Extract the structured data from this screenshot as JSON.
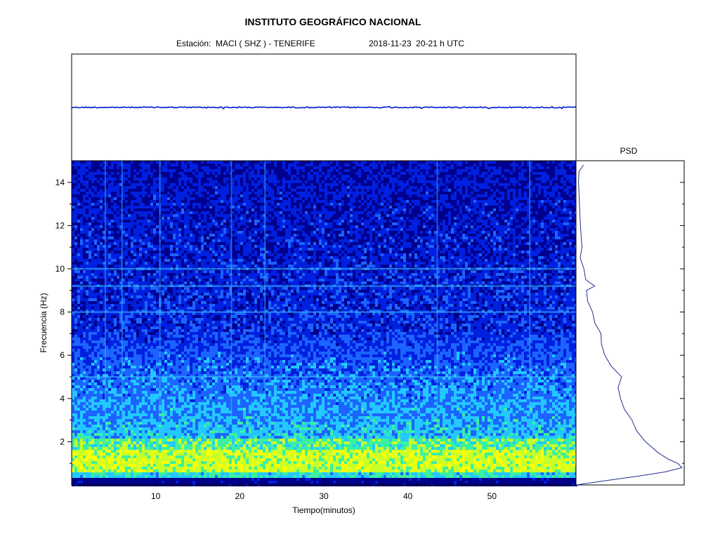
{
  "header": {
    "title": "INSTITUTO GEOGRÁFICO NACIONAL",
    "station": "Estación:  MACI ( SHZ ) - TENERIFE",
    "datetime": "2018-11-23  20-21 h UTC"
  },
  "chart_data": [
    {
      "type": "line",
      "panel": "seismogram",
      "title": "",
      "xlabel": "",
      "ylabel": "",
      "xlim": [
        0,
        60
      ],
      "color": "#0019c8",
      "description_level": "constant low-amplitude trace"
    },
    {
      "type": "heatmap",
      "panel": "spectrogram",
      "xlabel": "Tiempo(minutos)",
      "ylabel": "Frecuencia  (Hz)",
      "xlim": [
        0,
        60
      ],
      "ylim": [
        0,
        15
      ],
      "x_ticks": [
        10,
        20,
        30,
        40,
        50
      ],
      "y_ticks": [
        2,
        4,
        6,
        8,
        10,
        12,
        14
      ],
      "energy_bands_hz": [
        {
          "from": 0.0,
          "to": 0.3,
          "level": "very low"
        },
        {
          "from": 0.3,
          "to": 1.8,
          "level": "high"
        },
        {
          "from": 1.8,
          "to": 3.5,
          "level": "medium-high"
        },
        {
          "from": 3.5,
          "to": 7.0,
          "level": "medium"
        },
        {
          "from": 7.0,
          "to": 15.0,
          "level": "low"
        }
      ],
      "horizontal_lines_hz": [
        8.0,
        9.2,
        10.0,
        5.0
      ],
      "vertical_lines_min": [
        4.0,
        6.0,
        10.5,
        19.0,
        23.0,
        43.5,
        54.5
      ],
      "colormap": [
        "#00008c",
        "#0020e0",
        "#1c64ff",
        "#22c8ff",
        "#3cf0a0",
        "#c8ff28",
        "#ffff00"
      ]
    },
    {
      "type": "line",
      "panel": "psd",
      "title": "PSD",
      "y_hz": [
        0.0,
        0.2,
        0.4,
        0.6,
        0.8,
        1.0,
        1.2,
        1.5,
        2.0,
        2.5,
        3.0,
        3.5,
        4.0,
        4.5,
        5.0,
        5.5,
        6.0,
        6.5,
        7.0,
        7.5,
        8.0,
        8.5,
        9.0,
        9.2,
        9.5,
        10.0,
        10.5,
        11.0,
        12.0,
        13.0,
        14.0,
        14.5,
        14.8
      ],
      "power_rel": [
        0.0,
        0.28,
        0.56,
        0.82,
        0.98,
        0.94,
        0.85,
        0.75,
        0.65,
        0.57,
        0.51,
        0.46,
        0.41,
        0.38,
        0.41,
        0.32,
        0.27,
        0.24,
        0.22,
        0.17,
        0.16,
        0.11,
        0.1,
        0.18,
        0.08,
        0.07,
        0.05,
        0.05,
        0.03,
        0.03,
        0.02,
        0.04,
        0.07
      ],
      "color": "#203090"
    }
  ]
}
